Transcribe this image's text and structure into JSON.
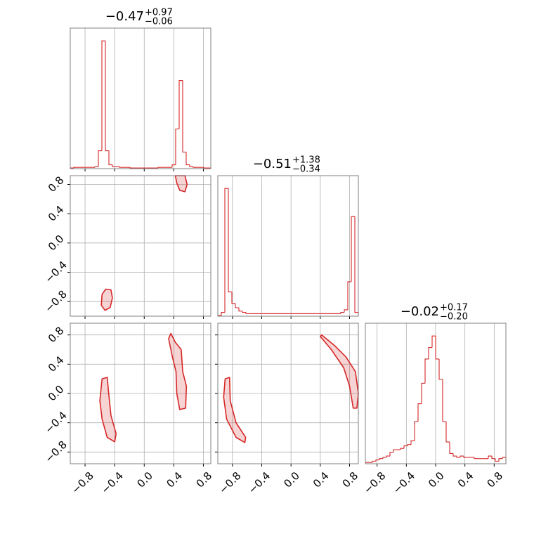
{
  "chart_data": [
    {
      "type": "histogram",
      "title": {
        "value": "−0.47",
        "plus": "+0.97",
        "minus": "−0.06"
      },
      "bins": [
        -1.0,
        -0.9525,
        -0.905,
        -0.8575,
        -0.81,
        -0.7625,
        -0.715,
        -0.6675,
        -0.62,
        -0.5725,
        -0.525,
        -0.4775,
        -0.43,
        -0.3825,
        -0.335,
        -0.2875,
        -0.24,
        -0.1925,
        -0.145,
        -0.0975,
        -0.05,
        -0.0025,
        0.045,
        0.0925,
        0.14,
        0.1875,
        0.235,
        0.2825,
        0.33,
        0.3775,
        0.425,
        0.4725,
        0.52,
        0.5675,
        0.615,
        0.6625,
        0.71,
        0.7575,
        0.805,
        0.8525,
        0.9
      ],
      "values": [
        0.5,
        1,
        1,
        1,
        1,
        1,
        1,
        1.5,
        14,
        100,
        14,
        3,
        1.5,
        1.5,
        1,
        1,
        1,
        0.5,
        0.5,
        0.5,
        0.5,
        0.5,
        0.5,
        0.5,
        0.5,
        1,
        1,
        1,
        1,
        3,
        31,
        69,
        13,
        3,
        1.5,
        1,
        1,
        1,
        0.5,
        0.5
      ],
      "color": "#d62728",
      "xlim": [
        -1.0,
        0.9
      ],
      "ylim": [
        0,
        110
      ],
      "xticks": [
        {
          "value": -0.8,
          "label": "−0.8"
        },
        {
          "value": -0.4,
          "label": "−0.4"
        },
        {
          "value": 0,
          "label": "0.0"
        },
        {
          "value": 0.4,
          "label": "0.4"
        },
        {
          "value": 0.8,
          "label": "0.8"
        }
      ],
      "grid": true
    },
    {
      "type": "contour",
      "color": "#d62728",
      "xlim": [
        -1.0,
        0.9
      ],
      "ylim": [
        -1.0,
        0.92
      ],
      "regions": [
        {
          "x": [
            -0.57,
            -0.52,
            -0.45,
            -0.43,
            -0.46,
            -0.53,
            -0.58
          ],
          "y": [
            -0.7,
            -0.63,
            -0.64,
            -0.75,
            -0.88,
            -0.92,
            -0.85
          ]
        },
        {
          "x": [
            0.42,
            0.55,
            0.58,
            0.55,
            0.48,
            0.44
          ],
          "y": [
            0.92,
            0.92,
            0.8,
            0.7,
            0.72,
            0.82
          ]
        }
      ],
      "xticks": [
        {
          "value": -0.8,
          "label": "−0.8"
        },
        {
          "value": -0.4,
          "label": "−0.4"
        },
        {
          "value": 0,
          "label": "0.0"
        },
        {
          "value": 0.4,
          "label": "0.4"
        },
        {
          "value": 0.8,
          "label": "0.8"
        }
      ],
      "yticks": [
        {
          "value": -0.8,
          "label": "−0.8"
        },
        {
          "value": -0.4,
          "label": "−0.4"
        },
        {
          "value": 0,
          "label": "0.0"
        },
        {
          "value": 0.4,
          "label": "0.4"
        },
        {
          "value": 0.8,
          "label": "0.8"
        }
      ],
      "grid": true
    },
    {
      "type": "histogram",
      "title": {
        "value": "−0.51",
        "plus": "+1.38",
        "minus": "−0.34"
      },
      "bins": [
        -1.0,
        -0.952,
        -0.904,
        -0.856,
        -0.808,
        -0.76,
        -0.712,
        -0.664,
        -0.616,
        -0.568,
        -0.52,
        -0.472,
        -0.424,
        -0.376,
        -0.328,
        -0.28,
        -0.232,
        -0.184,
        -0.136,
        -0.088,
        -0.04,
        0.008,
        0.056,
        0.104,
        0.152,
        0.2,
        0.248,
        0.296,
        0.344,
        0.392,
        0.44,
        0.488,
        0.536,
        0.584,
        0.632,
        0.68,
        0.728,
        0.776,
        0.824,
        0.872,
        0.92
      ],
      "values": [
        0.5,
        3,
        100,
        19,
        10,
        6.6,
        4,
        3,
        2,
        2,
        2,
        2,
        2,
        2,
        2,
        2,
        2,
        2,
        2,
        2,
        2,
        2,
        2,
        2,
        2,
        2,
        2,
        2,
        2,
        2,
        2,
        2,
        2,
        2,
        2,
        3,
        5,
        27,
        78,
        3
      ],
      "color": "#d62728",
      "xlim": [
        -1.0,
        0.92
      ],
      "ylim": [
        0,
        110
      ],
      "xticks": [
        {
          "value": -0.8,
          "label": "−0.8"
        },
        {
          "value": -0.4,
          "label": "−0.4"
        },
        {
          "value": 0,
          "label": "0.0"
        },
        {
          "value": 0.4,
          "label": "0.4"
        },
        {
          "value": 0.8,
          "label": "0.8"
        }
      ],
      "grid": true
    },
    {
      "type": "contour",
      "color": "#d62728",
      "xlim": [
        -1.0,
        0.9
      ],
      "ylim": [
        -0.96,
        0.96
      ],
      "regions": [
        {
          "x": [
            -0.57,
            -0.5,
            -0.48,
            -0.45,
            -0.38,
            -0.4,
            -0.5,
            -0.57,
            -0.6
          ],
          "y": [
            0.2,
            0.22,
            0.0,
            -0.3,
            -0.55,
            -0.66,
            -0.6,
            -0.35,
            -0.1
          ]
        },
        {
          "x": [
            0.36,
            0.42,
            0.5,
            0.52,
            0.57,
            0.56,
            0.48,
            0.44,
            0.43,
            0.38,
            0.33
          ],
          "y": [
            0.82,
            0.7,
            0.6,
            0.3,
            0.1,
            -0.2,
            -0.22,
            0.0,
            0.3,
            0.5,
            0.75
          ]
        }
      ],
      "xticks": [
        {
          "value": -0.8,
          "label": "−0.8"
        },
        {
          "value": -0.4,
          "label": "−0.4"
        },
        {
          "value": 0,
          "label": "0.0"
        },
        {
          "value": 0.4,
          "label": "0.4"
        },
        {
          "value": 0.8,
          "label": "0.8"
        }
      ],
      "yticks": [
        {
          "value": -0.8,
          "label": "−0.8"
        },
        {
          "value": -0.4,
          "label": "−0.4"
        },
        {
          "value": 0,
          "label": "0.0"
        },
        {
          "value": 0.4,
          "label": "0.4"
        },
        {
          "value": 0.8,
          "label": "0.8"
        }
      ],
      "grid": true
    },
    {
      "type": "contour",
      "color": "#d62728",
      "xlim": [
        -1.0,
        0.92
      ],
      "ylim": [
        -0.96,
        0.96
      ],
      "regions": [
        {
          "x": [
            -0.9,
            -0.84,
            -0.83,
            -0.75,
            -0.62,
            -0.63,
            -0.75,
            -0.88,
            -0.92
          ],
          "y": [
            0.2,
            0.22,
            -0.1,
            -0.4,
            -0.6,
            -0.67,
            -0.6,
            -0.35,
            -0.05
          ]
        },
        {
          "x": [
            0.42,
            0.6,
            0.75,
            0.88,
            0.92,
            0.9,
            0.85,
            0.8,
            0.72,
            0.55,
            0.4
          ],
          "y": [
            0.8,
            0.65,
            0.5,
            0.3,
            0.0,
            -0.2,
            -0.2,
            0.1,
            0.35,
            0.6,
            0.78
          ]
        }
      ],
      "xticks": [
        {
          "value": -0.8,
          "label": "−0.8"
        },
        {
          "value": -0.4,
          "label": "−0.4"
        },
        {
          "value": 0,
          "label": "0.0"
        },
        {
          "value": 0.4,
          "label": "0.4"
        },
        {
          "value": 0.8,
          "label": "0.8"
        }
      ],
      "yticks": [
        {
          "value": -0.8,
          "label": "−0.8"
        },
        {
          "value": -0.4,
          "label": "−0.4"
        },
        {
          "value": 0,
          "label": "0.0"
        },
        {
          "value": 0.4,
          "label": "0.4"
        },
        {
          "value": 0.8,
          "label": "0.8"
        }
      ],
      "grid": true
    },
    {
      "type": "histogram",
      "title": {
        "value": "−0.02",
        "plus": "+0.17",
        "minus": "−0.20"
      },
      "bins": [
        -0.96,
        -0.912,
        -0.864,
        -0.816,
        -0.768,
        -0.72,
        -0.672,
        -0.624,
        -0.576,
        -0.528,
        -0.48,
        -0.432,
        -0.384,
        -0.336,
        -0.288,
        -0.24,
        -0.192,
        -0.144,
        -0.096,
        -0.048,
        0.0,
        0.048,
        0.096,
        0.144,
        0.192,
        0.24,
        0.288,
        0.336,
        0.384,
        0.432,
        0.48,
        0.528,
        0.576,
        0.624,
        0.672,
        0.72,
        0.768,
        0.816,
        0.864,
        0.912,
        0.96
      ],
      "values": [
        1,
        1,
        2,
        3,
        4,
        5,
        6,
        9,
        11,
        11,
        12,
        14,
        15,
        18,
        33,
        47,
        63,
        82,
        91,
        100,
        82,
        66,
        33,
        17,
        8,
        6,
        5,
        6,
        5,
        5,
        5,
        4,
        4,
        4,
        4,
        6,
        4,
        2,
        4,
        5
      ],
      "color": "#d62728",
      "xlim": [
        -0.96,
        0.96
      ],
      "ylim": [
        0,
        110
      ],
      "xticks": [
        {
          "value": -0.8,
          "label": "−0.8"
        },
        {
          "value": -0.4,
          "label": "−0.4"
        },
        {
          "value": 0,
          "label": "0.0"
        },
        {
          "value": 0.4,
          "label": "0.4"
        },
        {
          "value": 0.8,
          "label": "0.8"
        }
      ],
      "grid": true
    }
  ]
}
